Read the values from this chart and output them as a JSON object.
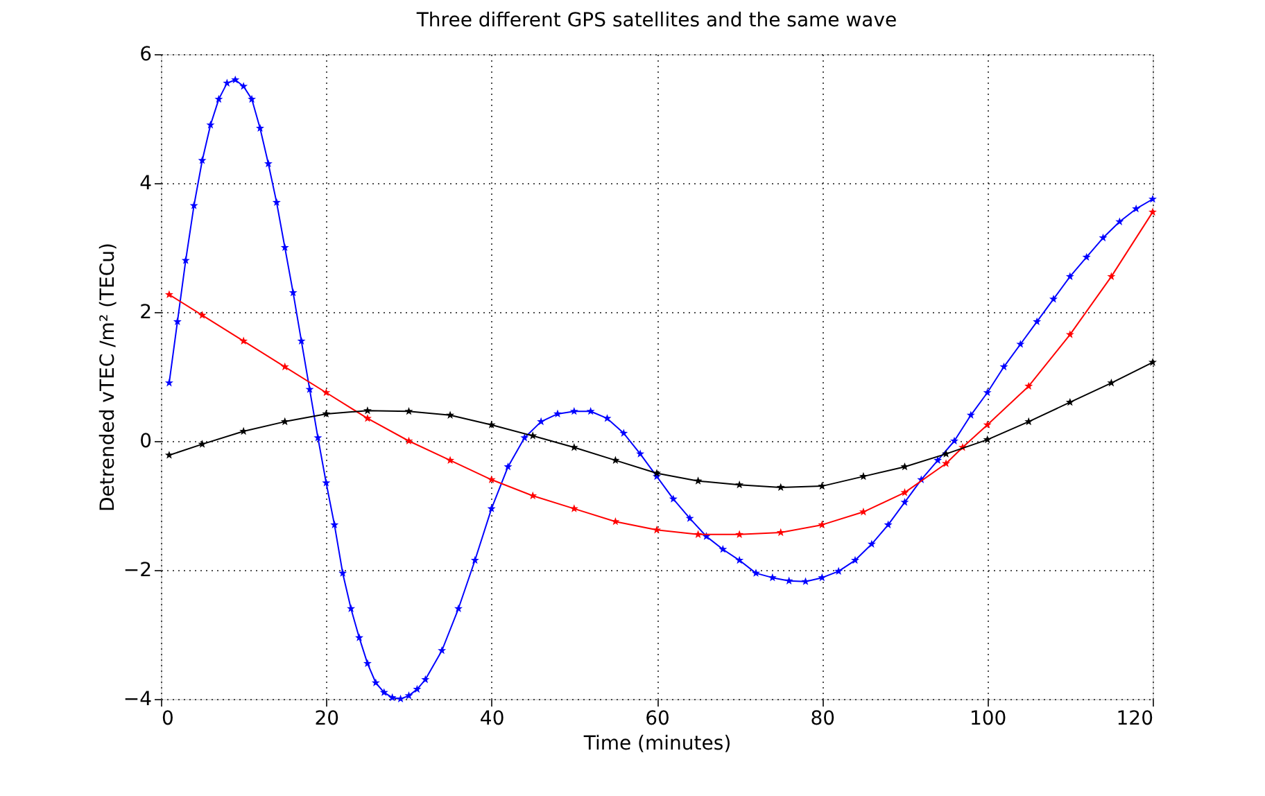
{
  "chart_data": {
    "type": "line",
    "title": "Three different GPS satellites and the same wave",
    "xlabel": "Time (minutes)",
    "ylabel": "Detrended vTEC /m² (TECu)",
    "xlim": [
      0,
      120
    ],
    "xticks": [
      0,
      20,
      40,
      60,
      80,
      100,
      120
    ],
    "ylim": [
      -4,
      6
    ],
    "yticks": [
      -4,
      -2,
      0,
      2,
      4,
      6
    ],
    "grid": true,
    "marker": "star",
    "line_style": "solid",
    "series": [
      {
        "color": "#0000ff",
        "x": [
          1,
          2,
          3,
          4,
          5,
          6,
          7,
          8,
          9,
          10,
          11,
          12,
          13,
          14,
          15,
          16,
          17,
          18,
          19,
          20,
          21,
          22,
          23,
          24,
          25,
          26,
          27,
          28,
          29,
          30,
          31,
          32,
          34,
          36,
          38,
          40,
          42,
          44,
          46,
          48,
          50,
          52,
          54,
          56,
          58,
          60,
          62,
          64,
          66,
          68,
          70,
          72,
          74,
          76,
          78,
          80,
          82,
          84,
          86,
          88,
          90,
          92,
          94,
          96,
          98,
          100,
          102,
          104,
          106,
          108,
          110,
          112,
          114,
          116,
          118,
          120
        ],
        "values": [
          0.9,
          1.85,
          2.8,
          3.65,
          4.35,
          4.9,
          5.3,
          5.55,
          5.6,
          5.5,
          5.3,
          4.85,
          4.3,
          3.7,
          3.0,
          2.3,
          1.55,
          0.8,
          0.05,
          -0.65,
          -1.3,
          -2.05,
          -2.6,
          -3.05,
          -3.45,
          -3.75,
          -3.9,
          -3.98,
          -4.0,
          -3.95,
          -3.85,
          -3.7,
          -3.25,
          -2.6,
          -1.85,
          -1.05,
          -0.4,
          0.05,
          0.3,
          0.42,
          0.46,
          0.46,
          0.35,
          0.12,
          -0.2,
          -0.55,
          -0.9,
          -1.2,
          -1.48,
          -1.68,
          -1.85,
          -2.05,
          -2.12,
          -2.17,
          -2.18,
          -2.12,
          -2.02,
          -1.85,
          -1.6,
          -1.3,
          -0.95,
          -0.6,
          -0.3,
          0.0,
          0.4,
          0.75,
          1.15,
          1.5,
          1.85,
          2.2,
          2.55,
          2.85,
          3.15,
          3.4,
          3.6,
          3.75
        ]
      },
      {
        "color": "#ff0000",
        "x": [
          1,
          5,
          10,
          15,
          20,
          25,
          30,
          35,
          40,
          45,
          50,
          55,
          60,
          65,
          70,
          75,
          80,
          85,
          90,
          95,
          97,
          100,
          105,
          110,
          115,
          120
        ],
        "values": [
          2.27,
          1.95,
          1.55,
          1.15,
          0.75,
          0.35,
          0.0,
          -0.3,
          -0.6,
          -0.85,
          -1.05,
          -1.25,
          -1.38,
          -1.45,
          -1.45,
          -1.42,
          -1.3,
          -1.1,
          -0.8,
          -0.35,
          -0.1,
          0.25,
          0.85,
          1.65,
          2.55,
          3.55
        ]
      },
      {
        "color": "#000000",
        "x": [
          1,
          5,
          10,
          15,
          20,
          25,
          30,
          35,
          40,
          45,
          50,
          55,
          60,
          65,
          70,
          75,
          80,
          85,
          90,
          95,
          100,
          105,
          110,
          115,
          120
        ],
        "values": [
          -0.22,
          -0.05,
          0.15,
          0.3,
          0.42,
          0.47,
          0.46,
          0.4,
          0.25,
          0.08,
          -0.1,
          -0.3,
          -0.5,
          -0.62,
          -0.68,
          -0.72,
          -0.7,
          -0.55,
          -0.4,
          -0.2,
          0.02,
          0.3,
          0.6,
          0.9,
          1.22
        ]
      }
    ]
  }
}
